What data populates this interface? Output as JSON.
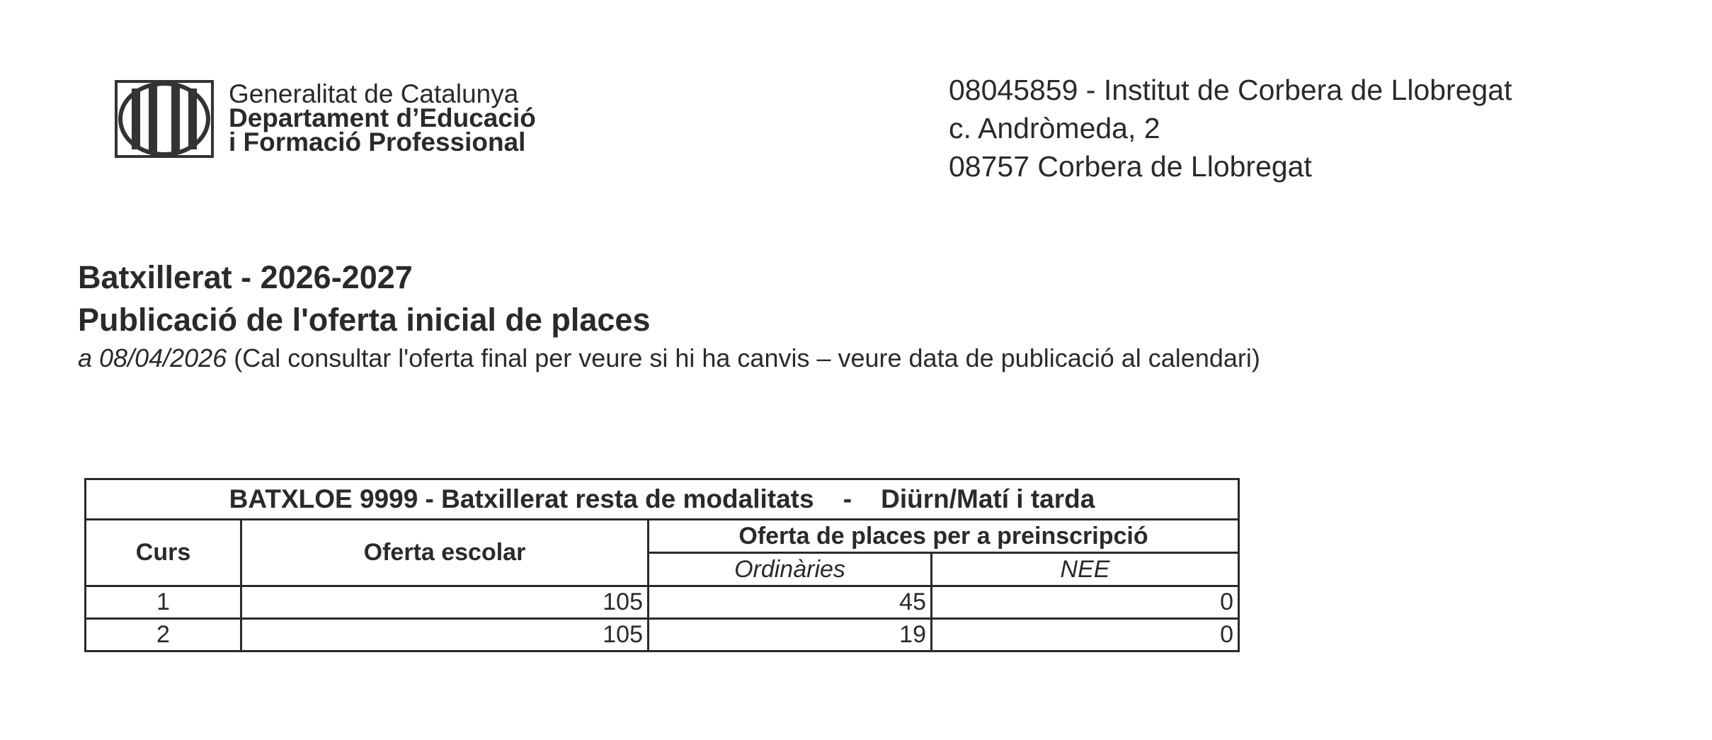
{
  "header": {
    "org_line1": "Generalitat de Catalunya",
    "org_line2": "Departament d’Educació",
    "org_line3": "i Formació Professional",
    "address": [
      "08045859 - Institut de Corbera de Llobregat",
      "c. Andròmeda, 2",
      "08757 Corbera de Llobregat"
    ]
  },
  "title": {
    "line1": "Batxillerat - 2026-2027",
    "line2": "Publicació de l'oferta inicial de places",
    "date": "a 08/04/2026",
    "note": " (Cal consultar l'oferta final per veure si hi ha canvis – veure data de publicació al calendari)"
  },
  "table": {
    "caption": "BATXLOE 9999 - Batxillerat resta de modalitats    -    Diürn/Matí i tarda",
    "headers": {
      "curs": "Curs",
      "oferta_escolar": "Oferta escolar",
      "oferta_preinscripcio": "Oferta de places per a preinscripció",
      "ordinaries": "Ordinàries",
      "nee": "NEE"
    },
    "rows": [
      {
        "curs": "1",
        "oferta_escolar": "105",
        "ordinaries": "45",
        "nee": "0"
      },
      {
        "curs": "2",
        "oferta_escolar": "105",
        "ordinaries": "19",
        "nee": "0"
      }
    ]
  }
}
